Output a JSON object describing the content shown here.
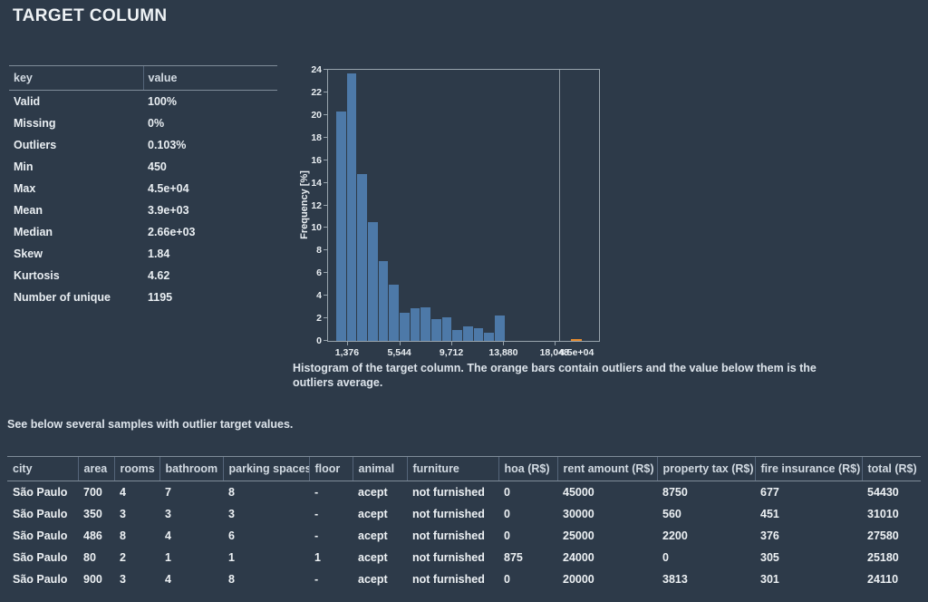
{
  "title": "TARGET COLUMN",
  "stats": {
    "headers": [
      "key",
      "value"
    ],
    "rows": [
      [
        "Valid",
        "100%"
      ],
      [
        "Missing",
        "0%"
      ],
      [
        "Outliers",
        "0.103%"
      ],
      [
        "Min",
        "450"
      ],
      [
        "Max",
        "4.5e+04"
      ],
      [
        "Mean",
        "3.9e+03"
      ],
      [
        "Median",
        "2.66e+03"
      ],
      [
        "Skew",
        "1.84"
      ],
      [
        "Kurtosis",
        "4.62"
      ],
      [
        "Number of unique",
        "1195"
      ]
    ]
  },
  "chart_data": {
    "type": "bar",
    "title": "",
    "xlabel": "",
    "ylabel": "Frequency [%]",
    "ylim": [
      0,
      24
    ],
    "y_ticks": [
      0,
      2,
      4,
      6,
      8,
      10,
      12,
      14,
      16,
      18,
      20,
      22,
      24
    ],
    "x_tick_labels": [
      "1,376",
      "5,544",
      "9,712",
      "13,880",
      "18,048"
    ],
    "x_tick_positions": [
      0.07,
      0.263,
      0.455,
      0.647,
      0.835
    ],
    "bars": {
      "start": 0.03,
      "width": 0.039,
      "values": [
        20.3,
        23.7,
        14.8,
        10.5,
        7.1,
        5.0,
        2.5,
        2.9,
        3.0,
        1.9,
        2.1,
        1.0,
        1.3,
        1.1,
        0.7,
        2.25
      ]
    },
    "divider_position": 0.853,
    "outlier_bar": {
      "position": 0.896,
      "width": 0.042,
      "value": 0.2
    },
    "outlier_label": "4.5e+04",
    "outlier_label_position": 0.917,
    "colors": {
      "blue": "#4d79a8",
      "orange": "#e58b2e",
      "divider": "#8a959e"
    },
    "grid": "off",
    "legend": "none",
    "caption": "Histogram of the target column. The orange bars contain outliers and the value below them is the outliers average."
  },
  "samples": {
    "intro": "See below several samples with outlier target values.",
    "headers": [
      "city",
      "area",
      "rooms",
      "bathroom",
      "parking spaces",
      "floor",
      "animal",
      "furniture",
      "hoa (R$)",
      "rent amount (R$)",
      "property tax (R$)",
      "fire insurance (R$)",
      "total (R$)"
    ],
    "rows": [
      [
        "São Paulo",
        "700",
        "4",
        "7",
        "8",
        "-",
        "acept",
        "not furnished",
        "0",
        "45000",
        "8750",
        "677",
        "54430"
      ],
      [
        "São Paulo",
        "350",
        "3",
        "3",
        "3",
        "-",
        "acept",
        "not furnished",
        "0",
        "30000",
        "560",
        "451",
        "31010"
      ],
      [
        "São Paulo",
        "486",
        "8",
        "4",
        "6",
        "-",
        "acept",
        "not furnished",
        "0",
        "25000",
        "2200",
        "376",
        "27580"
      ],
      [
        "São Paulo",
        "80",
        "2",
        "1",
        "1",
        "1",
        "acept",
        "not furnished",
        "875",
        "24000",
        "0",
        "305",
        "25180"
      ],
      [
        "São Paulo",
        "900",
        "3",
        "4",
        "8",
        "-",
        "acept",
        "not furnished",
        "0",
        "20000",
        "3813",
        "301",
        "24110"
      ]
    ]
  }
}
